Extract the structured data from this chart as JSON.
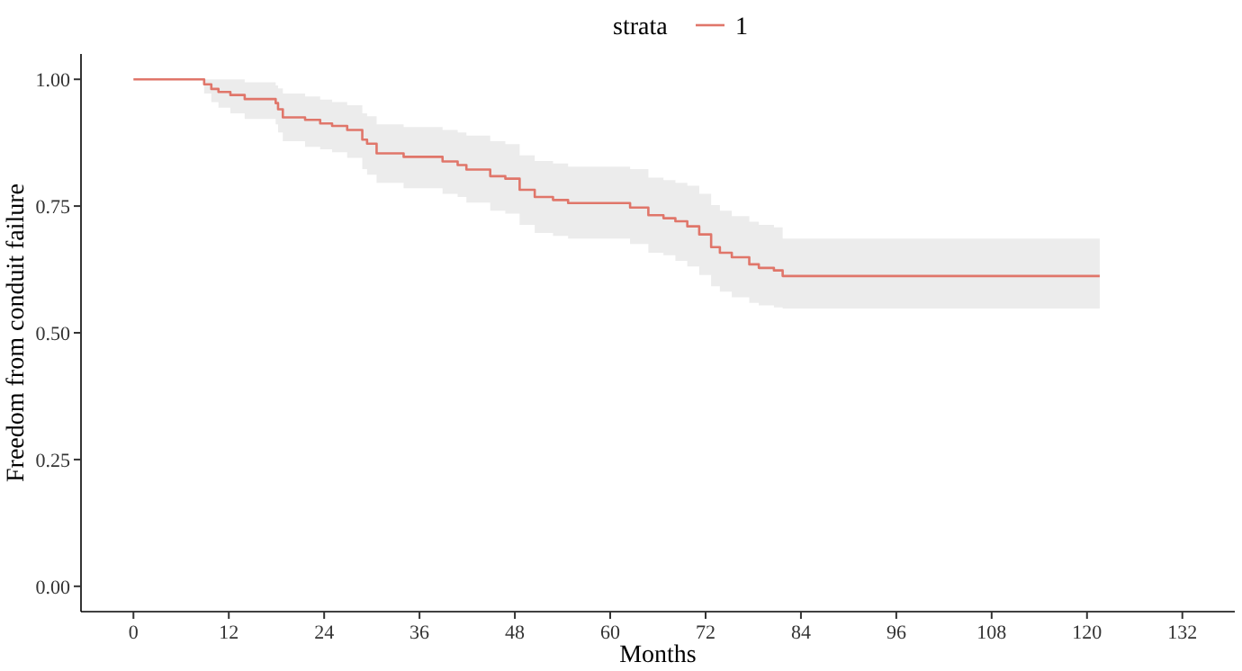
{
  "chart_data": {
    "type": "step",
    "xlabel": "Months",
    "ylabel": "Freedom from conduit failure",
    "legend_title": "strata",
    "legend": "top",
    "xlim": [
      -6.6,
      138.6
    ],
    "xticks": [
      0,
      12,
      24,
      36,
      48,
      60,
      72,
      84,
      96,
      108,
      120,
      132
    ],
    "ylim": [
      -0.05,
      1.05
    ],
    "yticks": [
      {
        "value": 0,
        "label": "0.00"
      },
      {
        "value": 0.25,
        "label": "0.25"
      },
      {
        "value": 0.5,
        "label": "0.50"
      },
      {
        "value": 0.75,
        "label": "0.75"
      },
      {
        "value": 1,
        "label": "1.00"
      }
    ],
    "grid": false,
    "x": [
      0,
      8.9,
      9.8,
      10.7,
      12.2,
      14,
      17.9,
      18.2,
      18.8,
      21.6,
      23.5,
      25,
      26.9,
      28.8,
      29.4,
      30.6,
      34,
      38.9,
      40.8,
      41.9,
      44.9,
      46.8,
      48.6,
      50.5,
      52.8,
      54.7,
      62.5,
      64.8,
      66.7,
      68.2,
      69.7,
      71.2,
      72.7,
      73.8,
      75.3,
      77.5,
      78.7,
      80.6,
      81.7,
      121.6
    ],
    "series": [
      {
        "name": "1",
        "color": "#e0766a",
        "values": [
          1,
          0.99,
          0.981,
          0.975,
          0.969,
          0.961,
          0.953,
          0.941,
          0.925,
          0.92,
          0.913,
          0.908,
          0.9,
          0.881,
          0.873,
          0.854,
          0.847,
          0.838,
          0.831,
          0.822,
          0.809,
          0.804,
          0.782,
          0.768,
          0.762,
          0.756,
          0.747,
          0.732,
          0.726,
          0.72,
          0.71,
          0.694,
          0.669,
          0.658,
          0.649,
          0.635,
          0.628,
          0.623,
          0.612,
          0.612
        ],
        "upper": [
          1,
          1,
          1,
          1,
          1,
          0.994,
          0.988,
          0.982,
          0.972,
          0.966,
          0.96,
          0.955,
          0.949,
          0.933,
          0.927,
          0.911,
          0.906,
          0.9,
          0.895,
          0.889,
          0.878,
          0.872,
          0.85,
          0.839,
          0.834,
          0.828,
          0.823,
          0.806,
          0.801,
          0.796,
          0.79,
          0.774,
          0.752,
          0.741,
          0.73,
          0.719,
          0.713,
          0.708,
          0.686,
          0.686
        ],
        "lower": [
          1,
          0.972,
          0.955,
          0.944,
          0.933,
          0.922,
          0.911,
          0.895,
          0.878,
          0.867,
          0.862,
          0.856,
          0.845,
          0.823,
          0.812,
          0.796,
          0.785,
          0.774,
          0.768,
          0.757,
          0.741,
          0.735,
          0.713,
          0.697,
          0.691,
          0.686,
          0.675,
          0.658,
          0.653,
          0.642,
          0.631,
          0.614,
          0.592,
          0.581,
          0.57,
          0.559,
          0.554,
          0.55,
          0.548,
          0.548
        ]
      }
    ]
  }
}
